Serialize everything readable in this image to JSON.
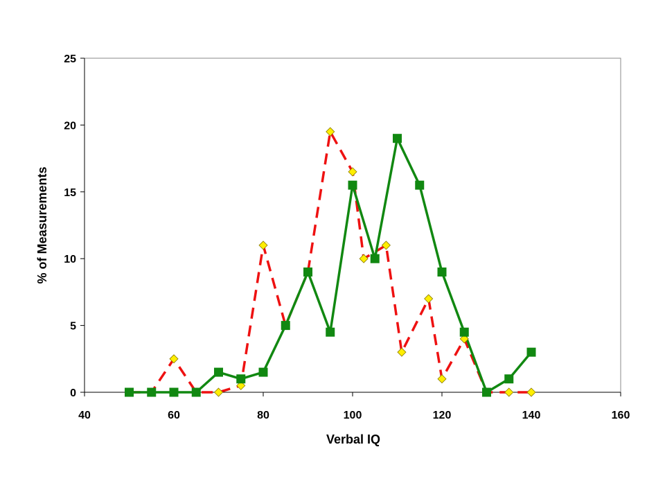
{
  "chart_data": {
    "type": "line",
    "xlabel": "Verbal IQ",
    "ylabel": "% of Measurements",
    "xlim": [
      40,
      160
    ],
    "ylim": [
      0,
      25
    ],
    "x_ticks": [
      40,
      60,
      80,
      100,
      120,
      140,
      160
    ],
    "y_ticks": [
      0,
      5,
      10,
      15,
      20,
      25
    ],
    "grid": false,
    "legend": "none",
    "series": [
      {
        "style": "solid",
        "line_color": "#118811",
        "marker": "square",
        "marker_color": "#118811",
        "points": [
          [
            50,
            0
          ],
          [
            55,
            0
          ],
          [
            60,
            0
          ],
          [
            65,
            0
          ],
          [
            70,
            1.5
          ],
          [
            75,
            1
          ],
          [
            80,
            1.5
          ],
          [
            85,
            5
          ],
          [
            90,
            9
          ],
          [
            95,
            4.5
          ],
          [
            100,
            15.5
          ],
          [
            105,
            10
          ],
          [
            110,
            19
          ],
          [
            115,
            15.5
          ],
          [
            120,
            9
          ],
          [
            125,
            4.5
          ],
          [
            130,
            0
          ],
          [
            135,
            1
          ],
          [
            140,
            3
          ]
        ]
      },
      {
        "style": "dashed",
        "line_color": "#ee1111",
        "marker": "diamond",
        "marker_color": "#ffee00",
        "points": [
          [
            50,
            0
          ],
          [
            55,
            0
          ],
          [
            60,
            2.5
          ],
          [
            65,
            0
          ],
          [
            70,
            0
          ],
          [
            75,
            0.5
          ],
          [
            80,
            11
          ],
          [
            85,
            5
          ],
          [
            90,
            9
          ],
          [
            95,
            19.5
          ],
          [
            100,
            16.5
          ],
          [
            102.5,
            10
          ],
          [
            107.5,
            11
          ],
          [
            111,
            3
          ],
          [
            117,
            7
          ],
          [
            120,
            1
          ],
          [
            125,
            4
          ],
          [
            130,
            0
          ],
          [
            135,
            0
          ],
          [
            140,
            0
          ]
        ]
      }
    ]
  }
}
